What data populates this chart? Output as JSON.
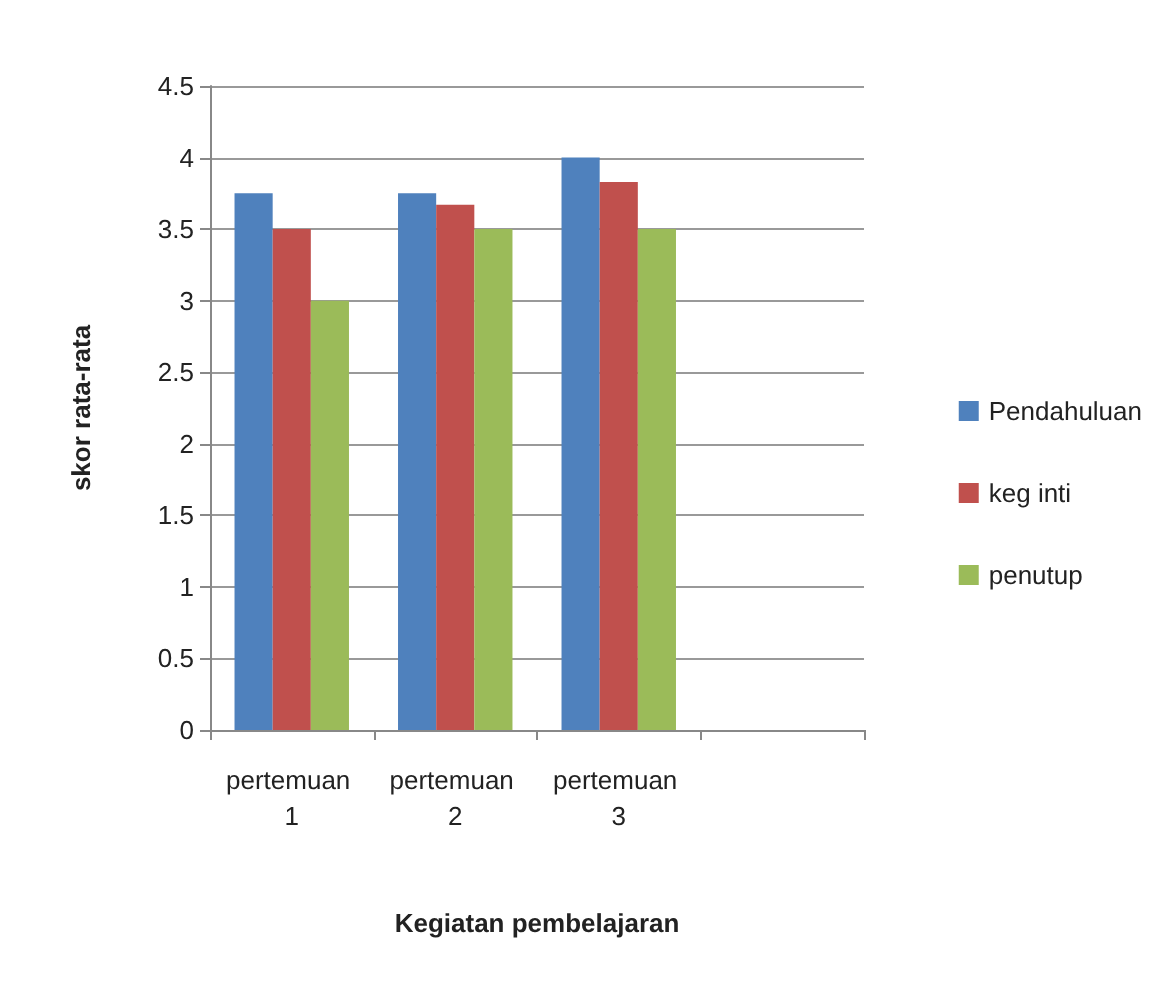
{
  "chart_data": {
    "type": "bar",
    "xlabel": "Kegiatan pembelajaran",
    "ylabel": "skor rata-rata",
    "categories": [
      "pertemuan 1",
      "pertemuan 2",
      "pertemuan 3",
      null
    ],
    "series": [
      {
        "name": "Pendahuluan",
        "color": "#4f81bd",
        "values": [
          3.75,
          3.75,
          4.0,
          null
        ]
      },
      {
        "name": "keg inti",
        "color": "#c0504d",
        "values": [
          3.5,
          3.67,
          3.83,
          null
        ]
      },
      {
        "name": "penutup",
        "color": "#9bbb59",
        "values": [
          3.0,
          3.5,
          3.5,
          null
        ]
      }
    ],
    "ylim": [
      0,
      4.5
    ],
    "yticks": [
      0,
      0.5,
      1,
      1.5,
      2,
      2.5,
      3,
      3.5,
      4,
      4.5
    ],
    "grid": "y",
    "legend": "right"
  }
}
